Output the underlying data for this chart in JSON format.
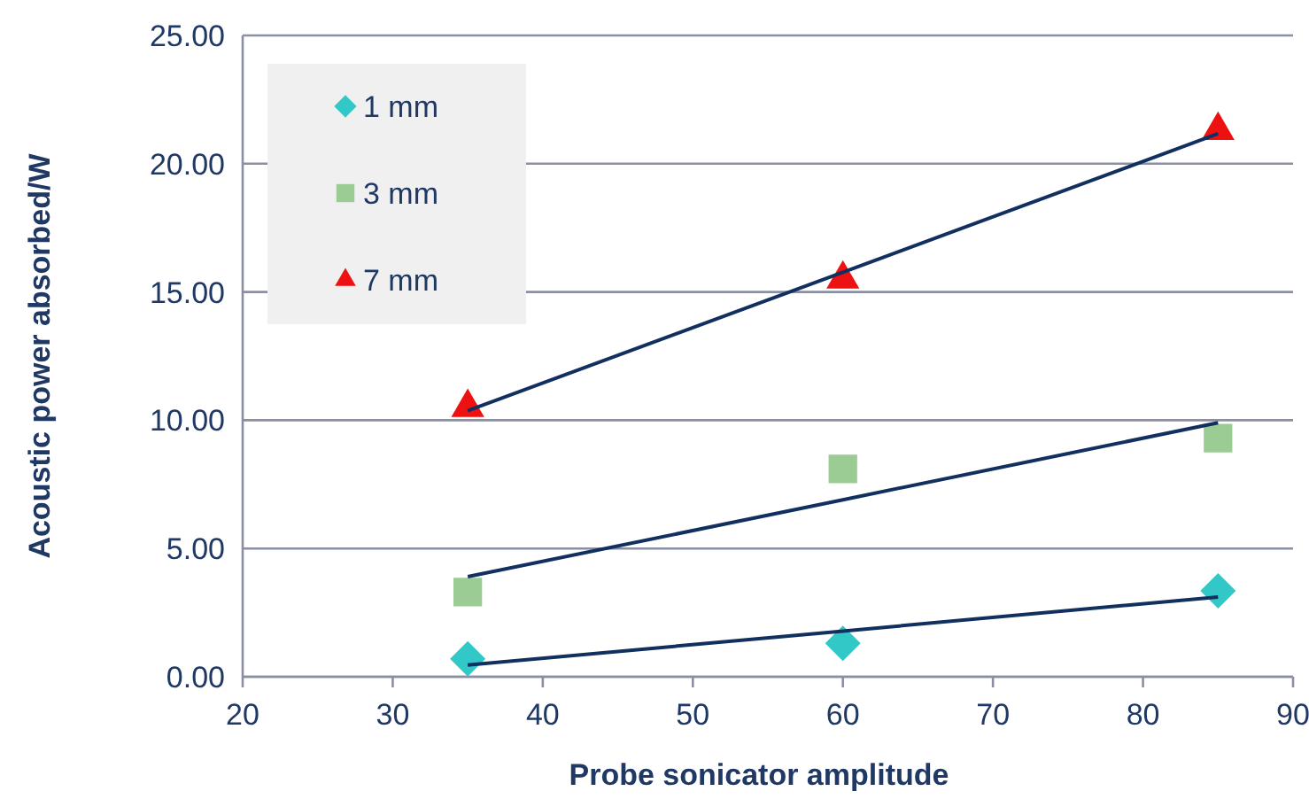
{
  "chart_data": {
    "type": "scatter",
    "xlabel": "Probe sonicator amplitude",
    "ylabel": "Acoustic power absorbed/W",
    "x": [
      35,
      60,
      85
    ],
    "series": [
      {
        "name": "1 mm",
        "color": "#33c8c8",
        "marker": "diamond",
        "values": [
          0.7,
          1.3,
          3.35
        ]
      },
      {
        "name": "3 mm",
        "color": "#9bcc94",
        "marker": "square",
        "values": [
          3.3,
          8.1,
          9.3
        ]
      },
      {
        "name": "7 mm",
        "color": "#ee1111",
        "marker": "triangle",
        "values": [
          10.5,
          15.5,
          21.3
        ]
      },
      {
        "type": "line",
        "color": "#12305f",
        "marker": "none",
        "values": [
          0.46,
          1.78,
          3.11
        ]
      },
      {
        "type": "line",
        "color": "#12305f",
        "marker": "none",
        "values": [
          3.9,
          6.9,
          9.9
        ]
      },
      {
        "type": "line",
        "color": "#12305f",
        "marker": "none",
        "values": [
          10.37,
          15.77,
          21.17
        ]
      }
    ],
    "xlim": [
      20,
      90
    ],
    "xticks": [
      20,
      30,
      40,
      50,
      60,
      70,
      80,
      90
    ],
    "ylim": [
      0,
      25
    ],
    "yticks": [
      {
        "value": 0,
        "label": "0.00"
      },
      {
        "value": 5,
        "label": "5.00"
      },
      {
        "value": 10,
        "label": "10.00"
      },
      {
        "value": 15,
        "label": "15.00"
      },
      {
        "value": 20,
        "label": "20.00"
      },
      {
        "value": 25,
        "label": "25.00"
      }
    ],
    "grid": "y",
    "legend": "top left"
  }
}
